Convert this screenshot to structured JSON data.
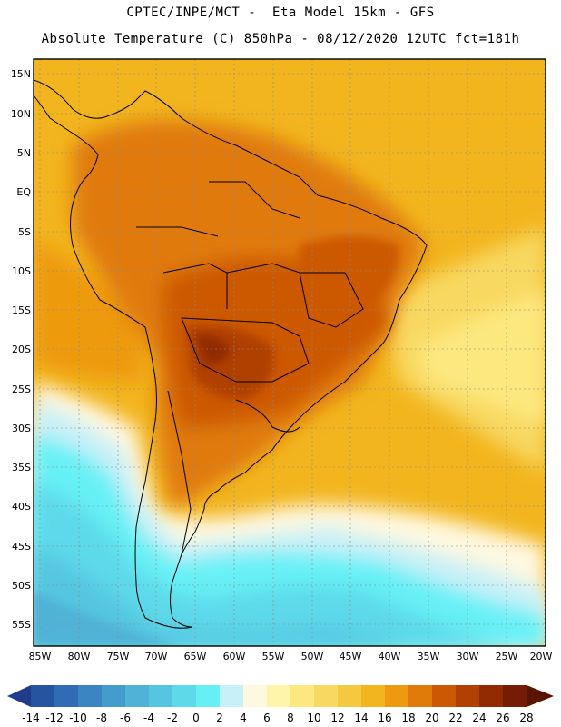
{
  "header": {
    "line1": "CPTEC/INPE/MCT -  Eta Model 15km - GFS",
    "line2": "Absolute Temperature (C) 850hPa - 08/12/2020 12UTC fct=181h"
  },
  "axes": {
    "lat_labels": [
      "15N",
      "10N",
      "5N",
      "EQ",
      "5S",
      "10S",
      "15S",
      "20S",
      "25S",
      "30S",
      "35S",
      "40S",
      "45S",
      "50S",
      "55S"
    ],
    "lon_labels": [
      "85W",
      "80W",
      "75W",
      "70W",
      "65W",
      "60W",
      "55W",
      "50W",
      "45W",
      "40W",
      "35W",
      "30W",
      "25W",
      "20W"
    ]
  },
  "colorbar": {
    "labels": [
      "-14",
      "-12",
      "-10",
      "-8",
      "-6",
      "-4",
      "-2",
      "0",
      "2",
      "4",
      "6",
      "8",
      "10",
      "12",
      "14",
      "16",
      "18",
      "20",
      "22",
      "24",
      "26",
      "28"
    ],
    "colors": [
      "#1f3d8a",
      "#2655a0",
      "#2f6cb3",
      "#3a85c2",
      "#449ccc",
      "#4fb2d6",
      "#55c6e0",
      "#5dd9ea",
      "#66f0f5",
      "#c8f0f8",
      "#fff8e0",
      "#fff5a8",
      "#fde880",
      "#f8d860",
      "#f5c840",
      "#f2b51e",
      "#ee9a10",
      "#e07a08",
      "#cc5806",
      "#b04004",
      "#922a04",
      "#741c04",
      "#5a1402"
    ]
  }
}
